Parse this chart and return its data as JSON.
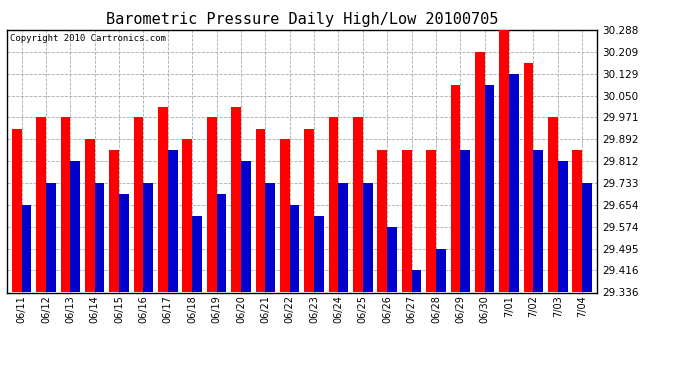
{
  "title": "Barometric Pressure Daily High/Low 20100705",
  "copyright": "Copyright 2010 Cartronics.com",
  "dates": [
    "06/11",
    "06/12",
    "06/13",
    "06/14",
    "06/15",
    "06/16",
    "06/17",
    "06/18",
    "06/19",
    "06/20",
    "06/21",
    "06/22",
    "06/23",
    "06/24",
    "06/25",
    "06/26",
    "06/27",
    "06/28",
    "06/29",
    "06/30",
    "7/01",
    "7/02",
    "7/03",
    "7/04"
  ],
  "highs": [
    29.93,
    29.971,
    29.971,
    29.892,
    29.852,
    29.971,
    30.01,
    29.892,
    29.971,
    30.01,
    29.93,
    29.892,
    29.93,
    29.971,
    29.971,
    29.852,
    29.852,
    29.852,
    30.09,
    30.209,
    30.288,
    30.17,
    29.971,
    29.852
  ],
  "lows": [
    29.654,
    29.733,
    29.812,
    29.733,
    29.693,
    29.733,
    29.852,
    29.614,
    29.693,
    29.812,
    29.733,
    29.654,
    29.614,
    29.733,
    29.733,
    29.574,
    29.416,
    29.495,
    29.852,
    30.09,
    30.129,
    29.852,
    29.812,
    29.733
  ],
  "high_color": "#FF0000",
  "low_color": "#0000CC",
  "bg_color": "#FFFFFF",
  "grid_color": "#AAAAAA",
  "ymin": 29.336,
  "ymax": 30.288,
  "yticks": [
    29.336,
    29.416,
    29.495,
    29.574,
    29.654,
    29.733,
    29.812,
    29.892,
    29.971,
    30.05,
    30.129,
    30.209,
    30.288
  ],
  "title_fontsize": 11,
  "copyright_fontsize": 6.5,
  "bar_width": 0.4
}
